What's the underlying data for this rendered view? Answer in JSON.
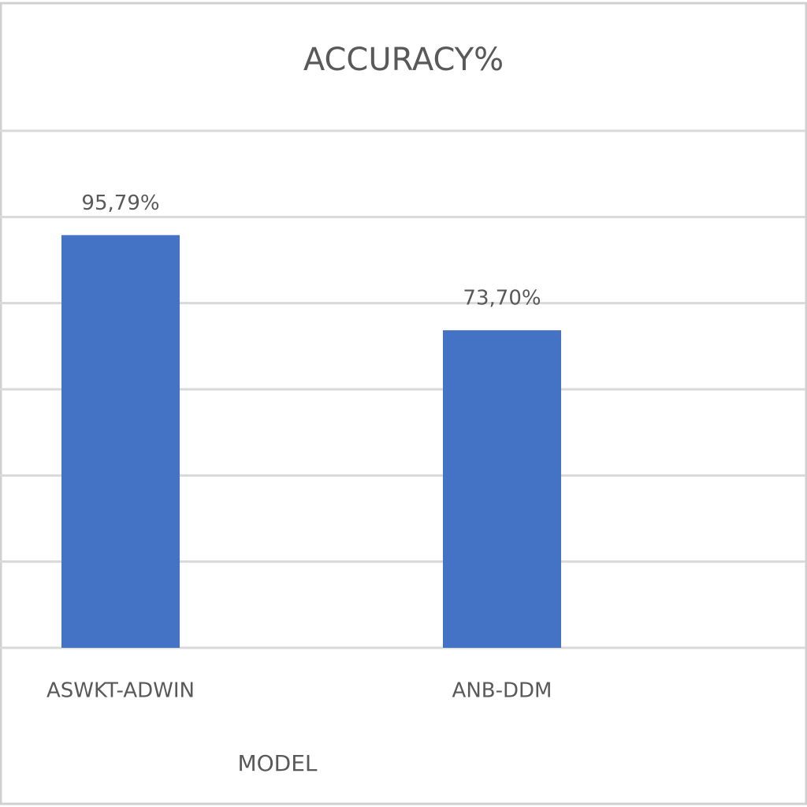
{
  "chart_data": {
    "type": "bar",
    "title": "ACCURACY%",
    "x_label": "MODEL",
    "categories": [
      "ASWKT-ADWIN",
      "ANB-DDM"
    ],
    "values": [
      95.79,
      73.7
    ],
    "value_labels": [
      "95,79%",
      "73,70%"
    ],
    "color": "#4472c4",
    "ylim": [
      0,
      120
    ],
    "yticks": [
      0,
      20,
      40,
      60,
      80,
      100,
      120
    ],
    "grid": true
  }
}
